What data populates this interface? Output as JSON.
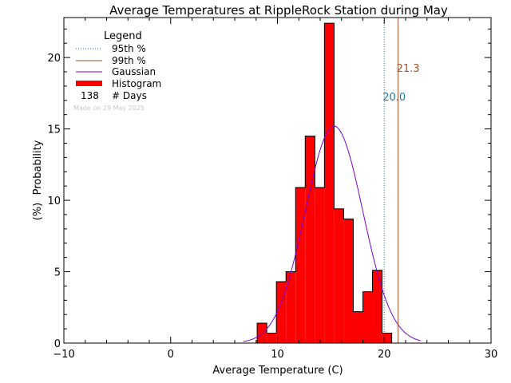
{
  "chart_data": {
    "type": "bar",
    "title": "Average Temperatures at RippleRock Station during May",
    "xlabel": "Average Temperature (C)",
    "ylabel_top": "Probability",
    "ylabel_bottom": "(%)",
    "xlim": [
      -10,
      30
    ],
    "ylim": [
      0,
      22.8
    ],
    "xticks": [
      -10,
      0,
      10,
      20,
      30
    ],
    "yticks": [
      0,
      5,
      10,
      15,
      20
    ],
    "legend": {
      "title": "Legend",
      "placement": "top-left",
      "items": [
        {
          "label": "95th %",
          "style": "dotted",
          "color": "#1f77b4"
        },
        {
          "label": "99th %",
          "style": "solid",
          "color": "#a0522d"
        },
        {
          "label": "Gaussian",
          "style": "solid",
          "color": "#7b00d4"
        },
        {
          "label": "Histogram",
          "style": "bar",
          "color": "#ff0000"
        }
      ],
      "count_value": "138",
      "count_label": "# Days",
      "note": "Made on 29 May 2025"
    },
    "histogram": {
      "bin_width": 0.9,
      "color": "#ff0000",
      "bins": [
        {
          "x_start": 8.1,
          "value": 1.4
        },
        {
          "x_start": 9.0,
          "value": 0.7
        },
        {
          "x_start": 9.9,
          "value": 4.3
        },
        {
          "x_start": 10.8,
          "value": 5.0
        },
        {
          "x_start": 11.7,
          "value": 10.9
        },
        {
          "x_start": 12.6,
          "value": 14.5
        },
        {
          "x_start": 13.5,
          "value": 10.9
        },
        {
          "x_start": 14.4,
          "value": 22.4
        },
        {
          "x_start": 15.3,
          "value": 9.4
        },
        {
          "x_start": 16.2,
          "value": 8.7
        },
        {
          "x_start": 17.1,
          "value": 2.2
        },
        {
          "x_start": 18.0,
          "value": 3.6
        },
        {
          "x_start": 18.9,
          "value": 5.1
        },
        {
          "x_start": 19.8,
          "value": 0.7
        }
      ]
    },
    "gaussian": {
      "mean": 15.3,
      "sigma": 2.7,
      "peak": 15.2,
      "x_range": [
        6.8,
        23.4
      ],
      "color": "#7b00d4"
    },
    "percentiles": [
      {
        "name": "95th %",
        "value": 20.0,
        "label": "20.0",
        "color": "#1f77b4",
        "style": "dotted",
        "label_y": 17.0
      },
      {
        "name": "99th %",
        "value": 21.3,
        "label": "21.3",
        "color": "#a0522d",
        "style": "solid",
        "label_y": 19.0
      }
    ]
  }
}
